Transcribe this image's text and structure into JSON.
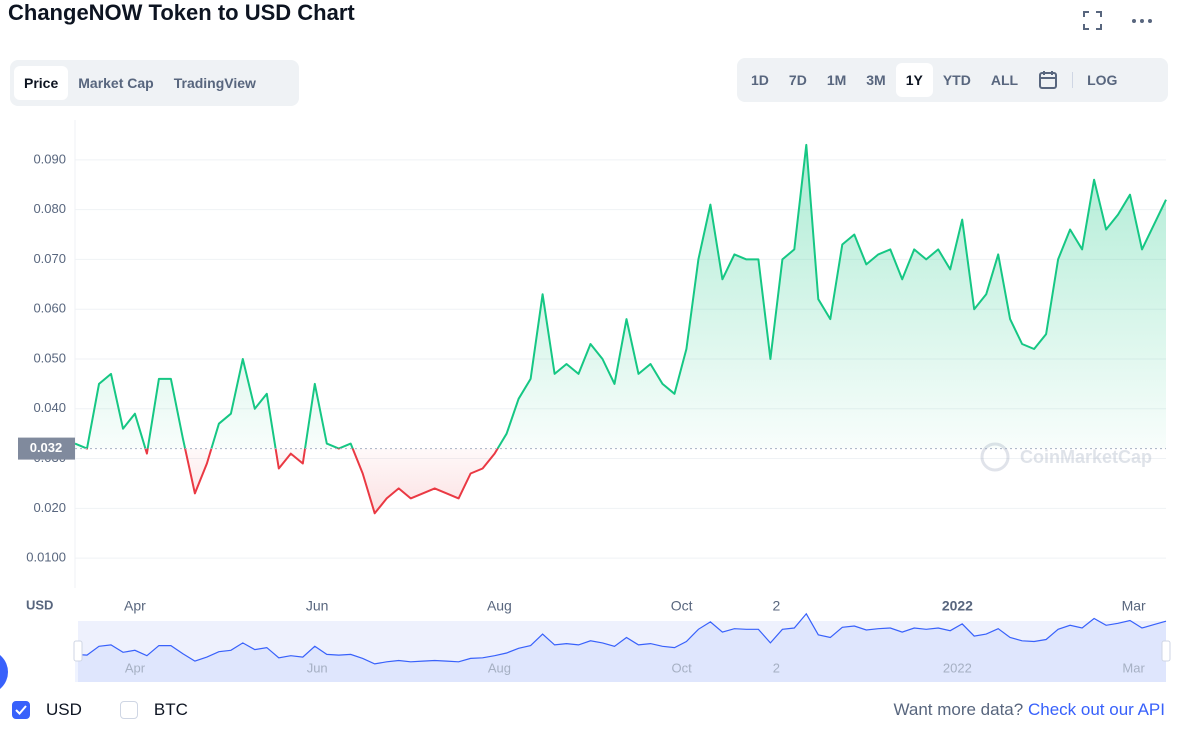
{
  "chart_data": {
    "type": "line",
    "title": "ChangeNOW Token to USD Chart",
    "tabs": [
      "Price",
      "Market Cap",
      "TradingView"
    ],
    "ranges": [
      "1D",
      "7D",
      "1M",
      "3M",
      "1Y",
      "YTD",
      "ALL"
    ],
    "log_label": "LOG",
    "y_axis_label": "USD",
    "watermark": "CoinMarketCap",
    "baseline": {
      "value": 0.032,
      "label": "0.032"
    },
    "up_color": "#16c784",
    "down_color": "#ea3943",
    "navigator_color": "#3861fb",
    "grid": true,
    "series": [
      {
        "name": "USD",
        "values": [
          0.033,
          0.032,
          0.045,
          0.047,
          0.036,
          0.039,
          0.031,
          0.046,
          0.046,
          0.034,
          0.023,
          0.029,
          0.037,
          0.039,
          0.05,
          0.04,
          0.043,
          0.028,
          0.031,
          0.029,
          0.045,
          0.033,
          0.032,
          0.033,
          0.027,
          0.019,
          0.022,
          0.024,
          0.022,
          0.023,
          0.024,
          0.023,
          0.022,
          0.027,
          0.028,
          0.031,
          0.035,
          0.042,
          0.046,
          0.063,
          0.047,
          0.049,
          0.047,
          0.053,
          0.05,
          0.045,
          0.058,
          0.047,
          0.049,
          0.045,
          0.043,
          0.052,
          0.07,
          0.081,
          0.066,
          0.071,
          0.07,
          0.07,
          0.05,
          0.07,
          0.072,
          0.093,
          0.062,
          0.058,
          0.073,
          0.075,
          0.069,
          0.071,
          0.072,
          0.066,
          0.072,
          0.07,
          0.072,
          0.068,
          0.078,
          0.06,
          0.063,
          0.071,
          0.058,
          0.053,
          0.052,
          0.055,
          0.07,
          0.076,
          0.072,
          0.086,
          0.076,
          0.079,
          0.083,
          0.072,
          0.077,
          0.082
        ]
      }
    ],
    "xlim": [
      0,
      91
    ],
    "xticks": [
      {
        "value": 5,
        "label": "Apr"
      },
      {
        "value": 20.2,
        "label": "Jun"
      },
      {
        "value": 35.4,
        "label": "Aug"
      },
      {
        "value": 50.6,
        "label": "Oct"
      },
      {
        "value": 58.5,
        "label": "2"
      },
      {
        "value": 73.6,
        "label": "2022"
      },
      {
        "value": 88.3,
        "label": "Mar"
      }
    ],
    "ylim": [
      0.004,
      0.098
    ],
    "yticks": [
      {
        "value": 0.01,
        "label": "0.0100"
      },
      {
        "value": 0.02,
        "label": "0.020"
      },
      {
        "value": 0.03,
        "label": "0.030"
      },
      {
        "value": 0.04,
        "label": "0.040"
      },
      {
        "value": 0.05,
        "label": "0.050"
      },
      {
        "value": 0.06,
        "label": "0.060"
      },
      {
        "value": 0.07,
        "label": "0.070"
      },
      {
        "value": 0.08,
        "label": "0.080"
      },
      {
        "value": 0.09,
        "label": "0.090"
      }
    ],
    "compare_option": "BTC",
    "footer_text": "Want more data?",
    "footer_link": "Check out our API"
  }
}
